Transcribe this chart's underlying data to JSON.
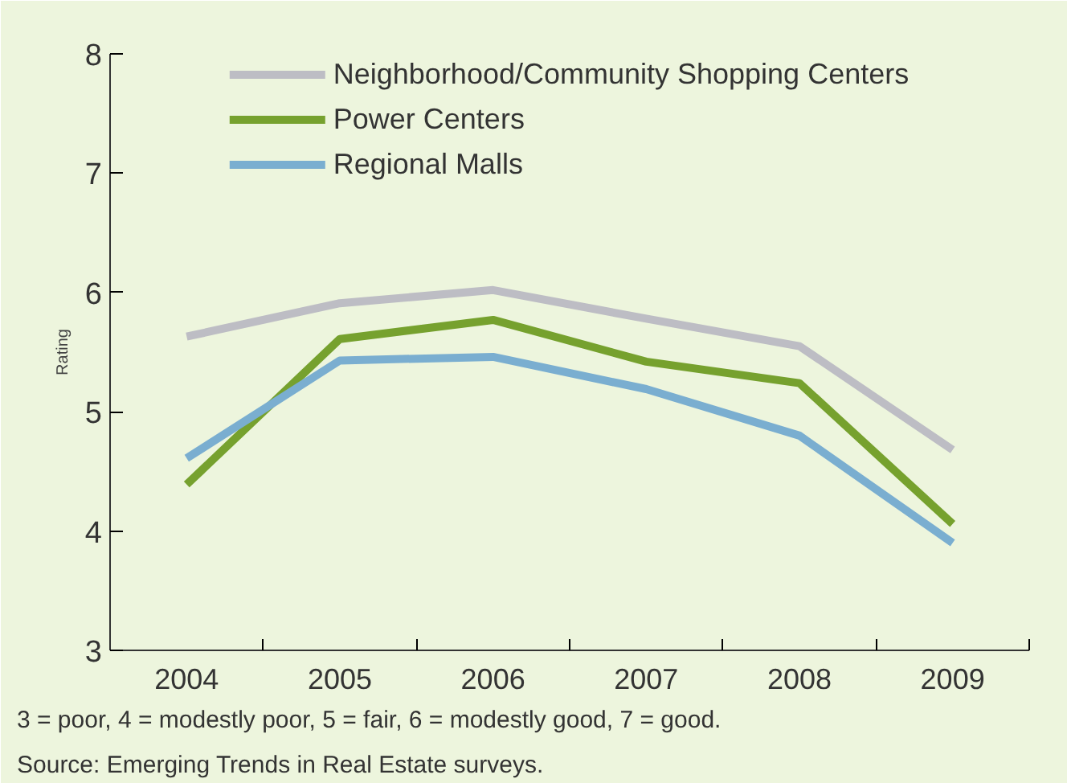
{
  "chart_data": {
    "type": "line",
    "ylabel": "Rating",
    "categories": [
      "2004",
      "2005",
      "2006",
      "2007",
      "2008",
      "2009"
    ],
    "series": [
      {
        "name": "Neighborhood/Community Shopping Centers",
        "color": "#bdbdc4",
        "values": [
          5.63,
          5.91,
          6.02,
          5.78,
          5.55,
          4.68
        ]
      },
      {
        "name": "Power Centers",
        "color": "#76a12e",
        "values": [
          4.39,
          5.61,
          5.77,
          5.42,
          5.24,
          4.06
        ]
      },
      {
        "name": "Regional Malls",
        "color": "#7aaed0",
        "values": [
          4.61,
          5.43,
          5.46,
          5.19,
          4.8,
          3.9
        ]
      }
    ],
    "ylim": [
      3,
      8
    ],
    "yticks": [
      3,
      4,
      5,
      6,
      7,
      8
    ],
    "grid": false,
    "legend": "top",
    "line_style": "solid",
    "marker": "none",
    "annotations": [
      "3 = poor, 4 = modestly poor, 5 = fair, 6 = modestly good, 7 = good.",
      "Source: Emerging Trends in Real Estate surveys."
    ]
  }
}
